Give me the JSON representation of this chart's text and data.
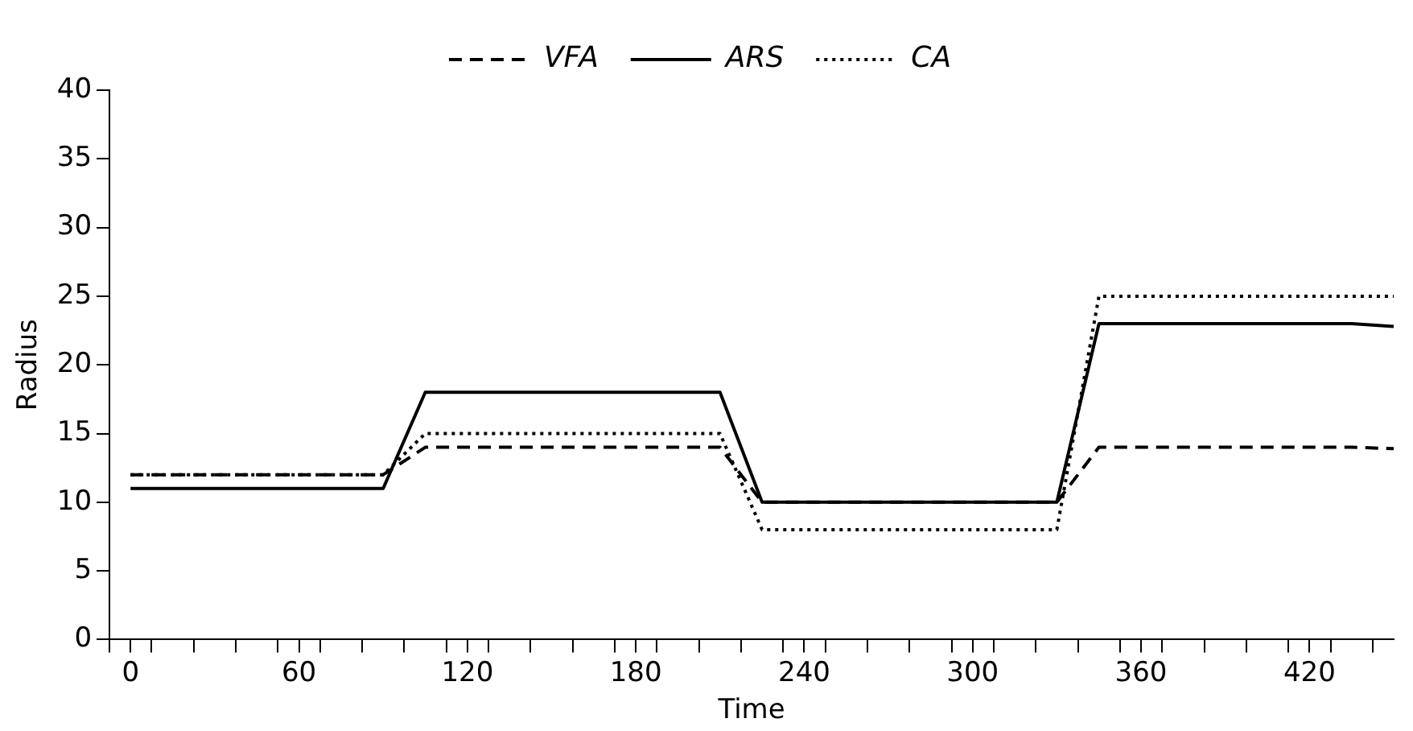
{
  "chart_data": {
    "type": "line",
    "xlabel": "Time",
    "ylabel": "Radius",
    "xlim": [
      -7.5,
      450
    ],
    "xticks": [
      {
        "value": -7.5,
        "label": null
      },
      {
        "value": 0,
        "label": "0"
      },
      {
        "value": 7.5,
        "label": null
      },
      {
        "value": 22.5,
        "label": null
      },
      {
        "value": 37.5,
        "label": null
      },
      {
        "value": 52.5,
        "label": null
      },
      {
        "value": 60,
        "label": "60"
      },
      {
        "value": 67.5,
        "label": null
      },
      {
        "value": 82.5,
        "label": null
      },
      {
        "value": 97.5,
        "label": null
      },
      {
        "value": 112.5,
        "label": null
      },
      {
        "value": 120,
        "label": "120"
      },
      {
        "value": 127.5,
        "label": null
      },
      {
        "value": 142.5,
        "label": null
      },
      {
        "value": 157.5,
        "label": null
      },
      {
        "value": 172.5,
        "label": null
      },
      {
        "value": 180,
        "label": "180"
      },
      {
        "value": 187.5,
        "label": null
      },
      {
        "value": 202.5,
        "label": null
      },
      {
        "value": 217.5,
        "label": null
      },
      {
        "value": 232.5,
        "label": null
      },
      {
        "value": 240,
        "label": "240"
      },
      {
        "value": 247.5,
        "label": null
      },
      {
        "value": 262.5,
        "label": null
      },
      {
        "value": 277.5,
        "label": null
      },
      {
        "value": 292.5,
        "label": null
      },
      {
        "value": 300,
        "label": "300"
      },
      {
        "value": 307.5,
        "label": null
      },
      {
        "value": 322.5,
        "label": null
      },
      {
        "value": 337.5,
        "label": null
      },
      {
        "value": 352.5,
        "label": null
      },
      {
        "value": 360,
        "label": "360"
      },
      {
        "value": 367.5,
        "label": null
      },
      {
        "value": 382.5,
        "label": null
      },
      {
        "value": 397.5,
        "label": null
      },
      {
        "value": 412.5,
        "label": null
      },
      {
        "value": 420,
        "label": "420"
      },
      {
        "value": 427.5,
        "label": null
      },
      {
        "value": 442.5,
        "label": null
      }
    ],
    "ylim": [
      0,
      40
    ],
    "yticks": [
      0,
      5,
      10,
      15,
      20,
      25,
      30,
      35,
      40
    ],
    "grid": false,
    "legend": "top",
    "marker": "none",
    "series": [
      {
        "name": "VFA",
        "color": "#000000",
        "line_style": "dashed",
        "x": [
          0,
          90,
          105,
          210,
          225,
          330,
          345,
          435,
          450
        ],
        "values": [
          12,
          12,
          14,
          14,
          10,
          10,
          14,
          14,
          13.9
        ]
      },
      {
        "name": "ARS",
        "color": "#000000",
        "line_style": "solid",
        "x": [
          0,
          90,
          105,
          210,
          225,
          330,
          345,
          435,
          450
        ],
        "values": [
          11,
          11,
          18,
          18,
          10,
          10,
          23,
          23,
          22.8
        ]
      },
      {
        "name": "CA",
        "color": "#000000",
        "line_style": "dotted",
        "x": [
          0,
          90,
          105,
          210,
          225,
          330,
          345,
          435,
          450
        ],
        "values": [
          12,
          12,
          15,
          15,
          8,
          8,
          25,
          25,
          25
        ]
      }
    ]
  }
}
